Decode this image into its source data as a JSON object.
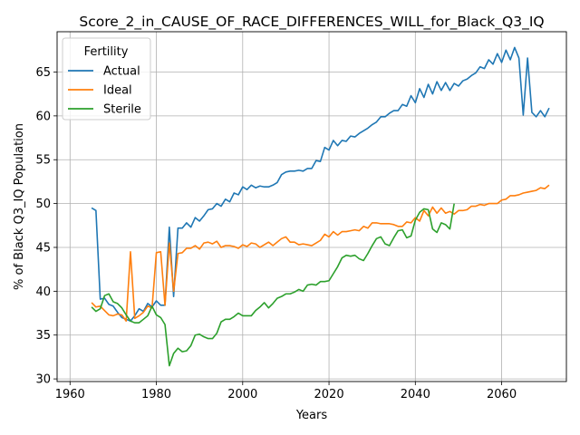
{
  "chart_data": {
    "type": "line",
    "title": "Score_2_in_CAUSE_OF_RACE_DIFFERENCES_WILL_for_Black_Q3_IQ",
    "xlabel": "Years",
    "ylabel": "% of Black Q3_IQ Population",
    "xlim": [
      1957,
      2075
    ],
    "ylim": [
      29.7,
      69.6
    ],
    "xticks": [
      1960,
      1980,
      2000,
      2020,
      2040,
      2060
    ],
    "yticks": [
      30,
      35,
      40,
      45,
      50,
      55,
      60,
      65
    ],
    "grid": true,
    "legend": {
      "title": "Fertility",
      "placement": "top-left"
    },
    "series": [
      {
        "name": "Actual",
        "color": "#1f77b4",
        "points": [
          [
            1965,
            49.5
          ],
          [
            1966,
            49.2
          ],
          [
            1967,
            39.1
          ],
          [
            1968,
            39.2
          ],
          [
            1969,
            38.5
          ],
          [
            1970,
            38.3
          ],
          [
            1971,
            37.6
          ],
          [
            1972,
            37.0
          ],
          [
            1973,
            36.8
          ],
          [
            1974,
            36.6
          ],
          [
            1975,
            37.2
          ],
          [
            1976,
            38.0
          ],
          [
            1977,
            37.7
          ],
          [
            1978,
            38.6
          ],
          [
            1979,
            38.2
          ],
          [
            1980,
            38.9
          ],
          [
            1981,
            38.4
          ],
          [
            1982,
            38.4
          ],
          [
            1983,
            47.3
          ],
          [
            1984,
            39.4
          ],
          [
            1985,
            47.2
          ],
          [
            1986,
            47.2
          ],
          [
            1987,
            47.8
          ],
          [
            1988,
            47.3
          ],
          [
            1989,
            48.4
          ],
          [
            1990,
            48.0
          ],
          [
            1991,
            48.6
          ],
          [
            1992,
            49.3
          ],
          [
            1993,
            49.4
          ],
          [
            1994,
            50.0
          ],
          [
            1995,
            49.7
          ],
          [
            1996,
            50.5
          ],
          [
            1997,
            50.2
          ],
          [
            1998,
            51.2
          ],
          [
            1999,
            51.0
          ],
          [
            2000,
            51.9
          ],
          [
            2001,
            51.6
          ],
          [
            2002,
            52.1
          ],
          [
            2003,
            51.8
          ],
          [
            2004,
            52.0
          ],
          [
            2005,
            51.9
          ],
          [
            2006,
            51.9
          ],
          [
            2007,
            52.1
          ],
          [
            2008,
            52.4
          ],
          [
            2009,
            53.3
          ],
          [
            2010,
            53.6
          ],
          [
            2011,
            53.7
          ],
          [
            2012,
            53.7
          ],
          [
            2013,
            53.8
          ],
          [
            2014,
            53.7
          ],
          [
            2015,
            54.0
          ],
          [
            2016,
            54.0
          ],
          [
            2017,
            54.9
          ],
          [
            2018,
            54.8
          ],
          [
            2019,
            56.4
          ],
          [
            2020,
            56.1
          ],
          [
            2021,
            57.2
          ],
          [
            2022,
            56.6
          ],
          [
            2023,
            57.2
          ],
          [
            2024,
            57.1
          ],
          [
            2025,
            57.7
          ],
          [
            2026,
            57.6
          ],
          [
            2027,
            58.0
          ],
          [
            2028,
            58.3
          ],
          [
            2029,
            58.6
          ],
          [
            2030,
            59.0
          ],
          [
            2031,
            59.3
          ],
          [
            2032,
            59.9
          ],
          [
            2033,
            59.9
          ],
          [
            2034,
            60.3
          ],
          [
            2035,
            60.6
          ],
          [
            2036,
            60.6
          ],
          [
            2037,
            61.3
          ],
          [
            2038,
            61.1
          ],
          [
            2039,
            62.3
          ],
          [
            2040,
            61.5
          ],
          [
            2041,
            63.1
          ],
          [
            2042,
            62.1
          ],
          [
            2043,
            63.6
          ],
          [
            2044,
            62.5
          ],
          [
            2045,
            63.9
          ],
          [
            2046,
            62.9
          ],
          [
            2047,
            63.8
          ],
          [
            2048,
            62.9
          ],
          [
            2049,
            63.7
          ],
          [
            2050,
            63.4
          ],
          [
            2051,
            64.0
          ],
          [
            2052,
            64.2
          ],
          [
            2053,
            64.6
          ],
          [
            2054,
            64.9
          ],
          [
            2055,
            65.6
          ],
          [
            2056,
            65.4
          ],
          [
            2057,
            66.4
          ],
          [
            2058,
            65.9
          ],
          [
            2059,
            67.1
          ],
          [
            2060,
            66.1
          ],
          [
            2061,
            67.5
          ],
          [
            2062,
            66.4
          ],
          [
            2063,
            67.8
          ],
          [
            2064,
            66.6
          ],
          [
            2065,
            60.1
          ],
          [
            2066,
            66.6
          ],
          [
            2067,
            60.4
          ],
          [
            2068,
            59.9
          ],
          [
            2069,
            60.6
          ],
          [
            2070,
            59.9
          ],
          [
            2071,
            60.9
          ]
        ]
      },
      {
        "name": "Ideal",
        "color": "#ff7f0e",
        "points": [
          [
            1965,
            38.7
          ],
          [
            1966,
            38.2
          ],
          [
            1967,
            38.3
          ],
          [
            1968,
            37.8
          ],
          [
            1969,
            37.3
          ],
          [
            1970,
            37.2
          ],
          [
            1971,
            37.4
          ],
          [
            1972,
            37.3
          ],
          [
            1973,
            36.6
          ],
          [
            1974,
            44.5
          ],
          [
            1975,
            36.9
          ],
          [
            1976,
            37.2
          ],
          [
            1977,
            37.6
          ],
          [
            1978,
            38.3
          ],
          [
            1979,
            38.1
          ],
          [
            1980,
            44.4
          ],
          [
            1981,
            44.5
          ],
          [
            1982,
            38.4
          ],
          [
            1983,
            45.5
          ],
          [
            1984,
            40.0
          ],
          [
            1985,
            44.3
          ],
          [
            1986,
            44.4
          ],
          [
            1987,
            44.9
          ],
          [
            1988,
            44.9
          ],
          [
            1989,
            45.2
          ],
          [
            1990,
            44.8
          ],
          [
            1991,
            45.5
          ],
          [
            1992,
            45.6
          ],
          [
            1993,
            45.4
          ],
          [
            1994,
            45.7
          ],
          [
            1995,
            45.0
          ],
          [
            1996,
            45.2
          ],
          [
            1997,
            45.2
          ],
          [
            1998,
            45.1
          ],
          [
            1999,
            44.9
          ],
          [
            2000,
            45.3
          ],
          [
            2001,
            45.1
          ],
          [
            2002,
            45.5
          ],
          [
            2003,
            45.4
          ],
          [
            2004,
            45.0
          ],
          [
            2005,
            45.3
          ],
          [
            2006,
            45.6
          ],
          [
            2007,
            45.2
          ],
          [
            2008,
            45.6
          ],
          [
            2009,
            46.0
          ],
          [
            2010,
            46.2
          ],
          [
            2011,
            45.6
          ],
          [
            2012,
            45.6
          ],
          [
            2013,
            45.3
          ],
          [
            2014,
            45.4
          ],
          [
            2015,
            45.3
          ],
          [
            2016,
            45.2
          ],
          [
            2017,
            45.5
          ],
          [
            2018,
            45.8
          ],
          [
            2019,
            46.5
          ],
          [
            2020,
            46.2
          ],
          [
            2021,
            46.8
          ],
          [
            2022,
            46.4
          ],
          [
            2023,
            46.8
          ],
          [
            2024,
            46.8
          ],
          [
            2025,
            46.9
          ],
          [
            2026,
            47.0
          ],
          [
            2027,
            46.9
          ],
          [
            2028,
            47.4
          ],
          [
            2029,
            47.2
          ],
          [
            2030,
            47.8
          ],
          [
            2031,
            47.8
          ],
          [
            2032,
            47.7
          ],
          [
            2033,
            47.7
          ],
          [
            2034,
            47.7
          ],
          [
            2035,
            47.6
          ],
          [
            2036,
            47.4
          ],
          [
            2037,
            47.4
          ],
          [
            2038,
            47.9
          ],
          [
            2039,
            47.8
          ],
          [
            2040,
            48.4
          ],
          [
            2041,
            48.0
          ],
          [
            2042,
            49.2
          ],
          [
            2043,
            48.6
          ],
          [
            2044,
            49.6
          ],
          [
            2045,
            48.9
          ],
          [
            2046,
            49.5
          ],
          [
            2047,
            48.9
          ],
          [
            2048,
            49.1
          ],
          [
            2049,
            48.8
          ],
          [
            2050,
            49.2
          ],
          [
            2051,
            49.2
          ],
          [
            2052,
            49.3
          ],
          [
            2053,
            49.7
          ],
          [
            2054,
            49.7
          ],
          [
            2055,
            49.9
          ],
          [
            2056,
            49.8
          ],
          [
            2057,
            50.0
          ],
          [
            2058,
            50.0
          ],
          [
            2059,
            50.0
          ],
          [
            2060,
            50.4
          ],
          [
            2061,
            50.5
          ],
          [
            2062,
            50.9
          ],
          [
            2063,
            50.9
          ],
          [
            2064,
            51.0
          ],
          [
            2065,
            51.2
          ],
          [
            2066,
            51.3
          ],
          [
            2067,
            51.4
          ],
          [
            2068,
            51.5
          ],
          [
            2069,
            51.8
          ],
          [
            2070,
            51.7
          ],
          [
            2071,
            52.1
          ]
        ]
      },
      {
        "name": "Sterile",
        "color": "#2ca02c",
        "points": [
          [
            1965,
            38.2
          ],
          [
            1966,
            37.7
          ],
          [
            1967,
            38.0
          ],
          [
            1968,
            39.5
          ],
          [
            1969,
            39.7
          ],
          [
            1970,
            38.8
          ],
          [
            1971,
            38.6
          ],
          [
            1972,
            38.1
          ],
          [
            1973,
            37.3
          ],
          [
            1974,
            36.6
          ],
          [
            1975,
            36.4
          ],
          [
            1976,
            36.4
          ],
          [
            1977,
            36.8
          ],
          [
            1978,
            37.2
          ],
          [
            1979,
            38.3
          ],
          [
            1980,
            37.3
          ],
          [
            1981,
            37.0
          ],
          [
            1982,
            36.2
          ],
          [
            1983,
            31.5
          ],
          [
            1984,
            32.9
          ],
          [
            1985,
            33.5
          ],
          [
            1986,
            33.1
          ],
          [
            1987,
            33.2
          ],
          [
            1988,
            33.8
          ],
          [
            1989,
            35.0
          ],
          [
            1990,
            35.1
          ],
          [
            1991,
            34.8
          ],
          [
            1992,
            34.6
          ],
          [
            1993,
            34.6
          ],
          [
            1994,
            35.2
          ],
          [
            1995,
            36.5
          ],
          [
            1996,
            36.8
          ],
          [
            1997,
            36.8
          ],
          [
            1998,
            37.1
          ],
          [
            1999,
            37.5
          ],
          [
            2000,
            37.2
          ],
          [
            2001,
            37.2
          ],
          [
            2002,
            37.2
          ],
          [
            2003,
            37.8
          ],
          [
            2004,
            38.2
          ],
          [
            2005,
            38.7
          ],
          [
            2006,
            38.1
          ],
          [
            2007,
            38.6
          ],
          [
            2008,
            39.2
          ],
          [
            2009,
            39.4
          ],
          [
            2010,
            39.7
          ],
          [
            2011,
            39.7
          ],
          [
            2012,
            39.9
          ],
          [
            2013,
            40.2
          ],
          [
            2014,
            40.0
          ],
          [
            2015,
            40.7
          ],
          [
            2016,
            40.8
          ],
          [
            2017,
            40.7
          ],
          [
            2018,
            41.1
          ],
          [
            2019,
            41.1
          ],
          [
            2020,
            41.2
          ],
          [
            2021,
            42.0
          ],
          [
            2022,
            42.8
          ],
          [
            2023,
            43.8
          ],
          [
            2024,
            44.1
          ],
          [
            2025,
            44.0
          ],
          [
            2026,
            44.1
          ],
          [
            2027,
            43.7
          ],
          [
            2028,
            43.5
          ],
          [
            2029,
            44.3
          ],
          [
            2030,
            45.2
          ],
          [
            2031,
            46.0
          ],
          [
            2032,
            46.2
          ],
          [
            2033,
            45.4
          ],
          [
            2034,
            45.2
          ],
          [
            2035,
            46.1
          ],
          [
            2036,
            46.9
          ],
          [
            2037,
            47.0
          ],
          [
            2038,
            46.1
          ],
          [
            2039,
            46.3
          ],
          [
            2040,
            48.1
          ],
          [
            2041,
            49.0
          ],
          [
            2042,
            49.4
          ],
          [
            2043,
            49.3
          ],
          [
            2044,
            47.1
          ],
          [
            2045,
            46.7
          ],
          [
            2046,
            47.8
          ],
          [
            2047,
            47.6
          ],
          [
            2048,
            47.1
          ],
          [
            2049,
            50.0
          ]
        ]
      }
    ]
  }
}
